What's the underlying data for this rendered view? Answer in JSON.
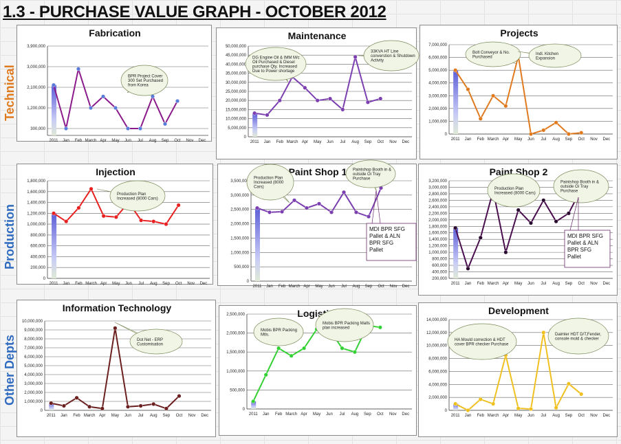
{
  "page": {
    "title": "1.3 - PURCHASE VALUE GRAPH - OCTOBER 2012",
    "sections": [
      {
        "label": "Technical",
        "color": "#e07a1f"
      },
      {
        "label": "Production",
        "color": "#2f6bbf"
      },
      {
        "label": "Other Depts",
        "color": "#2f6bbf"
      }
    ]
  },
  "chart_data": [
    {
      "type": "line",
      "title": "Fabrication",
      "categories": [
        "2011",
        "Jan",
        "Feb",
        "March",
        "Apr",
        "May",
        "Jun",
        "Jul",
        "Aug",
        "Sep",
        "Oct",
        "Nov",
        "Dec"
      ],
      "values": [
        2200000,
        300000,
        2900000,
        1200000,
        1700000,
        1200000,
        300000,
        300000,
        1700000,
        500000,
        1500000,
        null,
        null
      ],
      "line_color": "#8b1a8b",
      "marker_color": "#5a7bd8",
      "yticks": [
        "300,000",
        "1,200,000",
        "2,100,000",
        "3,000,000",
        "3,900,000"
      ],
      "ylim": [
        0,
        3900000
      ],
      "annotations": [
        "BPR Project Cover 300 Set Purchased from Korea"
      ]
    },
    {
      "type": "line",
      "title": "Maintenance",
      "categories": [
        "2011",
        "Jan",
        "Feb",
        "March",
        "Apr",
        "May",
        "Jun",
        "Jul",
        "Aug",
        "Sep",
        "Oct",
        "Nov",
        "Dec"
      ],
      "values": [
        13000000,
        12000000,
        20000000,
        33000000,
        27000000,
        20000000,
        21000000,
        15000000,
        44000000,
        19000000,
        21000000,
        null,
        null
      ],
      "line_color": "#7b3fb0",
      "marker_color": "#7b3fb0",
      "yticks": [
        "0",
        "5,000,000",
        "10,000,000",
        "15,000,000",
        "20,000,000",
        "25,000,000",
        "30,000,000",
        "35,000,000",
        "40,000,000",
        "45,000,000",
        "50,000,000"
      ],
      "ylim": [
        0,
        50000000
      ],
      "annotations": [
        "DG Engine Oil & IMM M/c Oil Purchased & Diesel purchase Qty. Increased Due to Power shortage",
        "33KVA HT Line converstion & Shutdown Activity"
      ]
    },
    {
      "type": "line",
      "title": "Projects",
      "categories": [
        "2011",
        "Jan",
        "Feb",
        "March",
        "Apr",
        "May",
        "Jun",
        "Jul",
        "Aug",
        "Sep",
        "Oct",
        "Nov",
        "Dec"
      ],
      "values": [
        5000000,
        3500000,
        1200000,
        3000000,
        2200000,
        6100000,
        0,
        300000,
        900000,
        0,
        100000,
        null,
        null
      ],
      "line_color": "#e07a1f",
      "marker_color": "#e07a1f",
      "yticks": [
        "0",
        "1,000,000",
        "2,000,000",
        "3,000,000",
        "4,000,000",
        "5,000,000",
        "6,000,000",
        "7,000,000"
      ],
      "ylim": [
        0,
        7000000
      ],
      "annotations": [
        "Bolt Conveyor & No. Purchased",
        "Indl. Kitchen Expansion"
      ]
    },
    {
      "type": "line",
      "title": "Injection",
      "categories": [
        "2011",
        "Jan",
        "Feb",
        "March",
        "Apr",
        "May",
        "Jun",
        "Jul",
        "Aug",
        "Sep",
        "Oct",
        "Nov",
        "Dec"
      ],
      "values": [
        1200000,
        1050000,
        1300000,
        1650000,
        1150000,
        1130000,
        1400000,
        1070000,
        1050000,
        1000000,
        1350000,
        null,
        null
      ],
      "line_color": "#e82020",
      "marker_color": "#e82020",
      "yticks": [
        "0",
        "200,000",
        "400,000",
        "600,000",
        "800,000",
        "1,000,000",
        "1,200,000",
        "1,400,000",
        "1,600,000",
        "1,800,000"
      ],
      "ylim": [
        0,
        1800000
      ],
      "annotations": [
        "Production Plan Increased (8000 Cars)"
      ]
    },
    {
      "type": "line",
      "title": "Paint Shop 1",
      "categories": [
        "2011",
        "Jan",
        "Feb",
        "March",
        "Apr",
        "May",
        "Jun",
        "Jul",
        "Aug",
        "Sep",
        "Oct",
        "Nov",
        "Dec"
      ],
      "values": [
        2550000,
        2400000,
        2420000,
        2820000,
        2550000,
        2700000,
        2400000,
        3100000,
        2400000,
        2250000,
        3250000,
        null,
        null
      ],
      "line_color": "#7b3fb0",
      "marker_color": "#7b3fb0",
      "yticks": [
        "0",
        "500,000",
        "1,000,000",
        "1,500,000",
        "2,000,000",
        "2,500,000",
        "3,000,000",
        "3,500,000"
      ],
      "ylim": [
        0,
        3500000
      ],
      "annotations": [
        "Production Plan Increased (8000 Cars)",
        "Paintshop Booth in & outside Oi Tray Purchase"
      ],
      "note": "MDI BPR SFG Pallet & ALN BPR SFG Pallet"
    },
    {
      "type": "line",
      "title": "Paint Shop 2",
      "categories": [
        "2011",
        "Jan",
        "Feb",
        "March",
        "Apr",
        "May",
        "Jun",
        "Jul",
        "Aug",
        "Sep",
        "Oct",
        "Nov",
        "Dec"
      ],
      "values": [
        1750000,
        500000,
        1450000,
        2900000,
        1000000,
        2300000,
        1900000,
        2600000,
        1950000,
        2200000,
        2950000,
        null,
        null
      ],
      "line_color": "#4a0e4e",
      "marker_color": "#2a0a2e",
      "yticks": [
        "200,000",
        "400,000",
        "600,000",
        "800,000",
        "1,000,000",
        "1,200,000",
        "1,400,000",
        "1,600,000",
        "1,800,000",
        "2,000,000",
        "2,200,000",
        "2,400,000",
        "2,600,000",
        "2,800,000",
        "3,000,000",
        "3,200,000"
      ],
      "ylim": [
        200000,
        3200000
      ],
      "annotations": [
        "Production Plan Increased (8000 Cars)",
        "Paintshop Booth in & outside Oi Tray Purchase"
      ],
      "note": "MDI BPR SFG Pallet & ALN BPR SFG Pallet"
    },
    {
      "type": "line",
      "title": "Information Technology",
      "categories": [
        "2011",
        "Jan",
        "Feb",
        "March",
        "Apr",
        "May",
        "Jun",
        "Jul",
        "Aug",
        "Sep",
        "Oct",
        "Nov",
        "Dec"
      ],
      "values": [
        800000,
        500000,
        1400000,
        400000,
        200000,
        9200000,
        400000,
        500000,
        700000,
        200000,
        1600000,
        null,
        null
      ],
      "line_color": "#6b1f1f",
      "marker_color": "#6b1f1f",
      "yticks": [
        "0",
        "1,000,000",
        "2,000,000",
        "3,000,000",
        "4,000,000",
        "5,000,000",
        "6,000,000",
        "7,000,000",
        "8,000,000",
        "9,000,000",
        "10,000,000"
      ],
      "ylim": [
        0,
        10000000
      ],
      "annotations": [
        "Dot Net - ERP Customisation"
      ]
    },
    {
      "type": "line",
      "title": "Logistics",
      "categories": [
        "2011",
        "Jan",
        "Feb",
        "March",
        "Apr",
        "May",
        "Jun",
        "Jul",
        "Aug",
        "Sep",
        "Oct",
        "Nov",
        "Dec"
      ],
      "values": [
        200000,
        900000,
        1600000,
        1400000,
        1600000,
        2100000,
        2100000,
        1600000,
        1500000,
        2200000,
        2150000,
        null,
        null
      ],
      "line_color": "#33d133",
      "marker_color": "#33d133",
      "yticks": [
        "0",
        "500,000",
        "1,000,000",
        "1,500,000",
        "2,000,000",
        "2,500,000"
      ],
      "ylim": [
        0,
        2500000
      ],
      "annotations": [
        "Mobis BPR Packing Mtls.",
        "Mobis BPR Packing Matls plan increased"
      ]
    },
    {
      "type": "line",
      "title": "Development",
      "categories": [
        "2011",
        "Jan",
        "Feb",
        "March",
        "Apr",
        "May",
        "Jun",
        "Jul",
        "Aug",
        "Sep",
        "Oct",
        "Nov",
        "Dec"
      ],
      "values": [
        1000000,
        0,
        1700000,
        1000000,
        8500000,
        300000,
        200000,
        12000000,
        400000,
        4100000,
        2500000,
        null,
        null
      ],
      "line_color": "#f0c020",
      "marker_color": "#f0c020",
      "yticks": [
        "0",
        "2,000,000",
        "4,000,000",
        "6,000,000",
        "8,000,000",
        "10,000,000",
        "12,000,000",
        "14,000,000"
      ],
      "ylim": [
        0,
        14000000
      ],
      "annotations": [
        "HA Mould correction & HDT cover BPR checker Purchase",
        "Daimler HDT D/T,Fender, console mold & checker"
      ]
    }
  ]
}
